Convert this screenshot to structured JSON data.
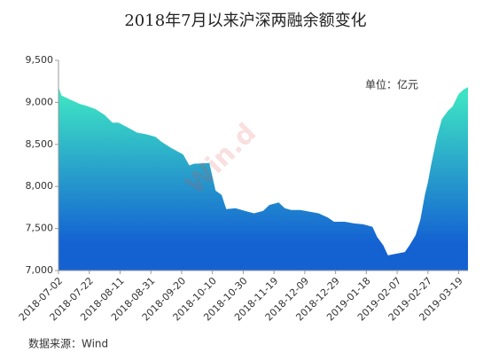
{
  "chart_data": {
    "type": "area",
    "title": "2018年7月以来沪深两融余额变化",
    "unit_label": "单位：亿元",
    "source": "数据来源：Wind",
    "watermark": "Win.d",
    "x": [
      "2018-07-02",
      "2018-07-04",
      "2018-07-10",
      "2018-07-16",
      "2018-07-20",
      "2018-07-26",
      "2018-08-01",
      "2018-08-06",
      "2018-08-10",
      "2018-08-16",
      "2018-08-22",
      "2018-08-28",
      "2018-09-03",
      "2018-09-07",
      "2018-09-13",
      "2018-09-19",
      "2018-09-21",
      "2018-09-25",
      "2018-09-28",
      "2018-10-08",
      "2018-10-12",
      "2018-10-16",
      "2018-10-19",
      "2018-10-25",
      "2018-10-31",
      "2018-11-06",
      "2018-11-12",
      "2018-11-16",
      "2018-11-22",
      "2018-11-26",
      "2018-11-30",
      "2018-12-06",
      "2018-12-12",
      "2018-12-18",
      "2018-12-24",
      "2018-12-28",
      "2019-01-04",
      "2019-01-10",
      "2019-01-16",
      "2019-01-22",
      "2019-01-25",
      "2019-01-29",
      "2019-02-01",
      "2019-02-12",
      "2019-02-15",
      "2019-02-19",
      "2019-02-22",
      "2019-02-25",
      "2019-02-27",
      "2019-03-01",
      "2019-03-05",
      "2019-03-08",
      "2019-03-12",
      "2019-03-15",
      "2019-03-19",
      "2019-03-22",
      "2019-03-25"
    ],
    "values": [
      9180,
      9080,
      9030,
      8980,
      8960,
      8920,
      8850,
      8760,
      8760,
      8700,
      8640,
      8620,
      8590,
      8530,
      8460,
      8400,
      8380,
      8250,
      8270,
      8280,
      7950,
      7900,
      7730,
      7740,
      7710,
      7680,
      7710,
      7780,
      7810,
      7740,
      7720,
      7720,
      7700,
      7680,
      7630,
      7580,
      7580,
      7560,
      7550,
      7520,
      7400,
      7300,
      7180,
      7220,
      7300,
      7420,
      7600,
      7900,
      8050,
      8250,
      8600,
      8800,
      8900,
      8950,
      9100,
      9150,
      9180
    ],
    "color_top": "#3de2c4",
    "color_bottom": "#1462d2",
    "xlim": [
      "2018-07-02",
      "2019-03-25"
    ],
    "xticks": [
      "2018-07-02",
      "2018-07-22",
      "2018-08-11",
      "2018-08-31",
      "2018-09-20",
      "2018-10-10",
      "2018-10-30",
      "2018-11-19",
      "2018-12-09",
      "2018-12-29",
      "2019-01-18",
      "2019-02-07",
      "2019-02-27",
      "2019-03-19"
    ],
    "ylim": [
      7000,
      9500
    ],
    "yticks": [
      {
        "value": 7000,
        "label": "7,000"
      },
      {
        "value": 7500,
        "label": "7,500"
      },
      {
        "value": 8000,
        "label": "8,000"
      },
      {
        "value": 8500,
        "label": "8,500"
      },
      {
        "value": 9000,
        "label": "9,000"
      },
      {
        "value": 9500,
        "label": "9,500"
      }
    ]
  }
}
